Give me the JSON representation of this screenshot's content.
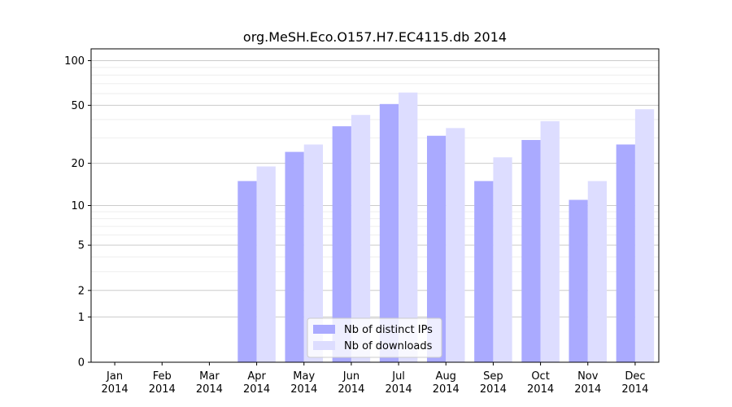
{
  "chart_data": {
    "type": "bar",
    "title": "org.MeSH.Eco.O157.H7.EC4115.db 2014",
    "xlabel": "",
    "ylabel": "",
    "y_scale": "log(1+y)",
    "ylim": [
      0,
      120
    ],
    "y_ticks": [
      0,
      1,
      2,
      5,
      10,
      20,
      50,
      100
    ],
    "y_minor_ticks": [
      3,
      4,
      6,
      7,
      8,
      9,
      30,
      40,
      60,
      70,
      80,
      90
    ],
    "grid": true,
    "legend_position": "lower-center",
    "categories": [
      {
        "month": "Jan",
        "year": "2014"
      },
      {
        "month": "Feb",
        "year": "2014"
      },
      {
        "month": "Mar",
        "year": "2014"
      },
      {
        "month": "Apr",
        "year": "2014"
      },
      {
        "month": "May",
        "year": "2014"
      },
      {
        "month": "Jun",
        "year": "2014"
      },
      {
        "month": "Jul",
        "year": "2014"
      },
      {
        "month": "Aug",
        "year": "2014"
      },
      {
        "month": "Sep",
        "year": "2014"
      },
      {
        "month": "Oct",
        "year": "2014"
      },
      {
        "month": "Nov",
        "year": "2014"
      },
      {
        "month": "Dec",
        "year": "2014"
      }
    ],
    "series": [
      {
        "name": "Nb of distinct IPs",
        "color": "#aaaaff",
        "values": [
          0,
          0,
          0,
          15,
          24,
          36,
          51,
          31,
          15,
          29,
          11,
          27
        ]
      },
      {
        "name": "Nb of downloads",
        "color": "#ddddff",
        "values": [
          0,
          0,
          0,
          19,
          27,
          43,
          61,
          35,
          22,
          39,
          15,
          47
        ]
      }
    ]
  }
}
